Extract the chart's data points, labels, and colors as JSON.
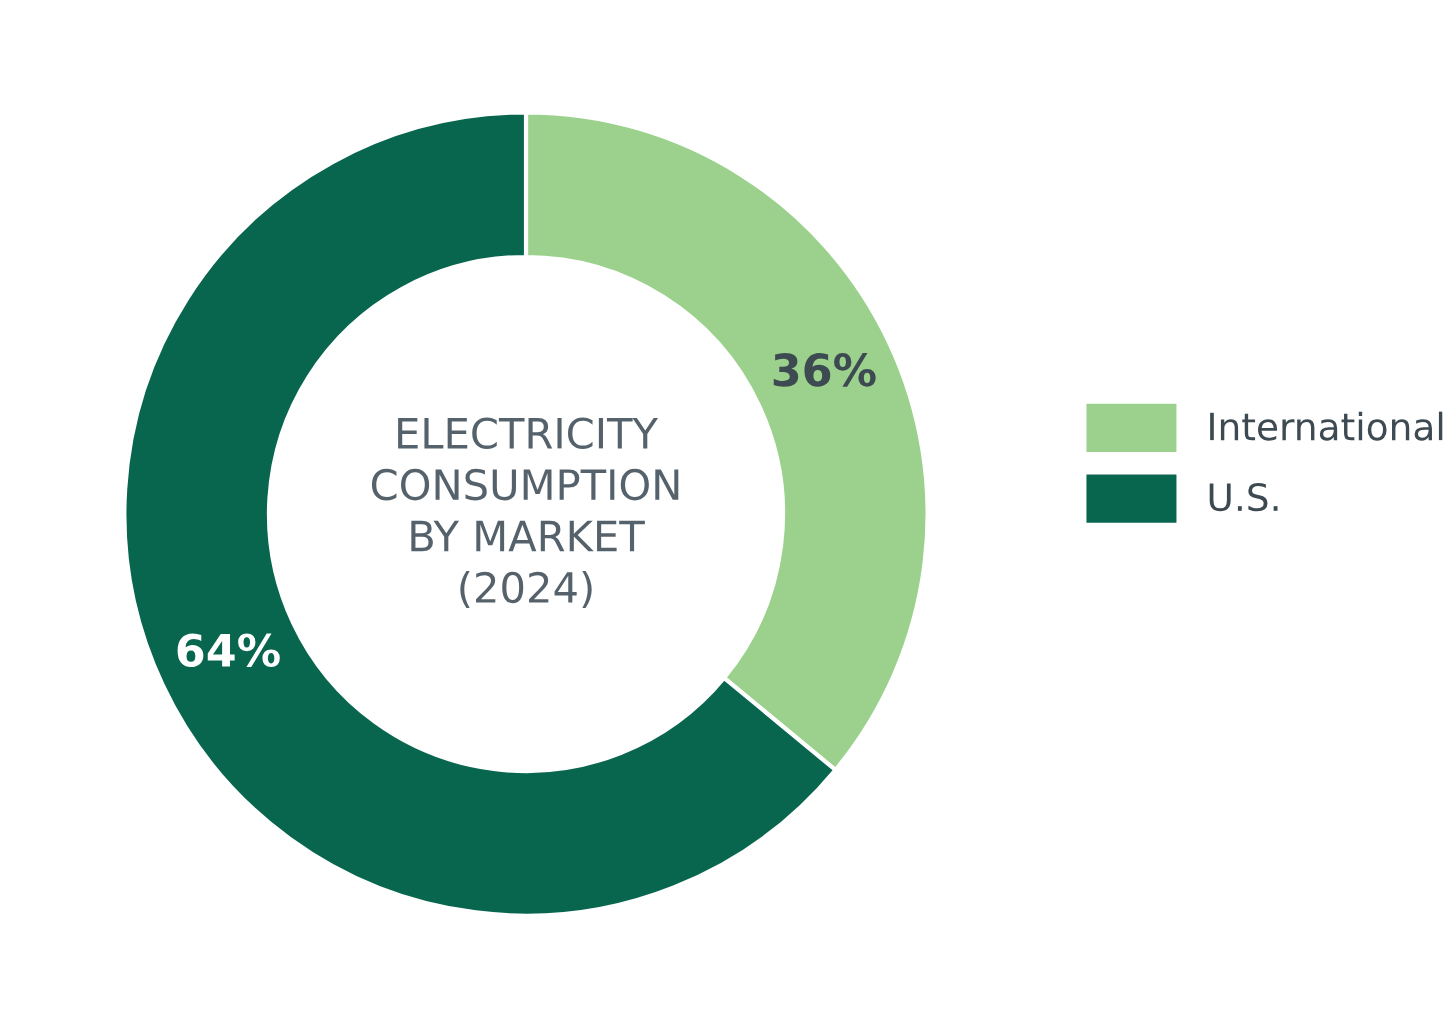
{
  "chart_data": {
    "type": "donut",
    "title": "ELECTRICITY\nCONSUMPTION\nBY MARKET\n(2024)",
    "categories": [
      "International",
      "U.S."
    ],
    "values": [
      36,
      64
    ],
    "value_labels": [
      "36%",
      "64%"
    ],
    "colors": [
      "#9bd18c",
      "#08664e"
    ],
    "legend": "right"
  }
}
